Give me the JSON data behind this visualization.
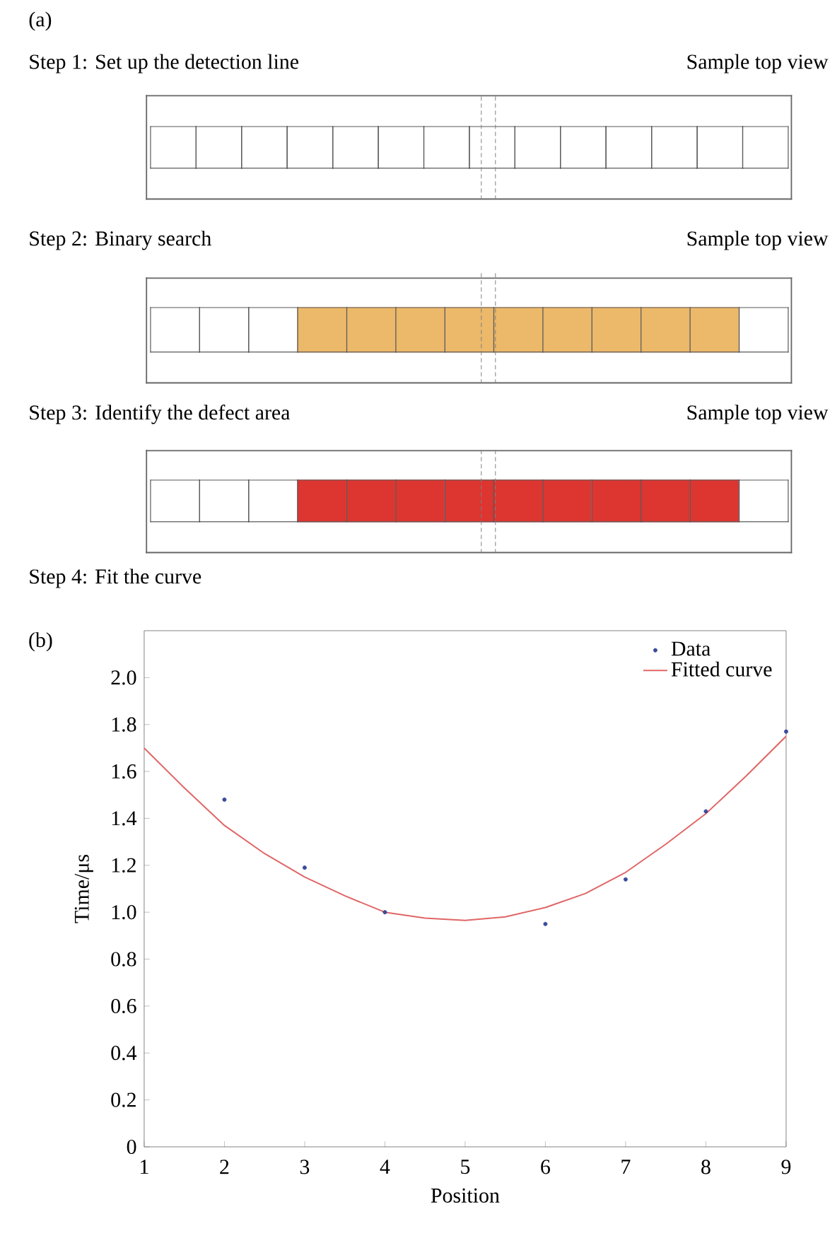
{
  "chart_data": [
    {
      "type": "other",
      "title": "(a)",
      "annotations": [
        "Step 1: Set up the detection line",
        "Sample top view",
        "Step 2: Binary search",
        "Sample top view",
        "Step 3: Identify the defect area",
        "Sample top view",
        "Step 4: Fit the curve"
      ]
    },
    {
      "type": "scatter",
      "title": "(b)",
      "xlabel": "Position",
      "ylabel": "Time/μs",
      "xlim": [
        1,
        9
      ],
      "ylim": [
        0,
        2.2
      ],
      "xticks": [
        1,
        2,
        3,
        4,
        5,
        6,
        7,
        8,
        9
      ],
      "yticks": [
        0,
        0.2,
        0.4,
        0.6,
        0.8,
        {
          "value": 1,
          "label": "1.0"
        },
        1.2,
        1.4,
        1.6,
        1.8,
        {
          "value": 2,
          "label": "2.0"
        }
      ],
      "legend": "top right",
      "series": [
        {
          "name": "Data",
          "type": "scatter",
          "color": "#3a4a9c",
          "marker": "circle",
          "x": [
            2,
            3,
            4,
            6,
            7,
            8,
            9
          ],
          "values": [
            1.48,
            1.19,
            1.0,
            0.95,
            1.14,
            1.43,
            1.77
          ]
        },
        {
          "name": "Fitted curve",
          "type": "line",
          "color": "#e06666",
          "marker": "none",
          "line_style": "solid",
          "x": [
            1,
            1.5,
            2,
            2.5,
            3,
            3.5,
            4,
            4.5,
            5,
            5.5,
            6,
            6.5,
            7,
            7.5,
            8,
            8.5,
            9
          ],
          "values": [
            1.7,
            1.53,
            1.37,
            1.25,
            1.15,
            1.07,
            1.0,
            0.975,
            0.965,
            0.98,
            1.02,
            1.08,
            1.17,
            1.29,
            1.42,
            1.58,
            1.75
          ]
        }
      ]
    }
  ]
}
